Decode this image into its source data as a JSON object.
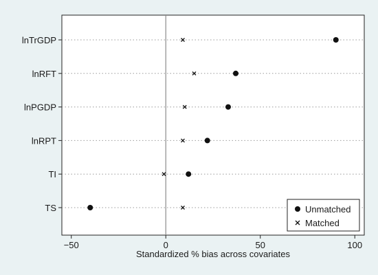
{
  "chart_data": {
    "type": "scatter",
    "title": "",
    "xlabel": "Standardized % bias across covariates",
    "ylabel": "",
    "xlim": [
      -55,
      105
    ],
    "xticks": [
      -50,
      0,
      50,
      100
    ],
    "categories": [
      "lnTrGDP",
      "lnRFT",
      "lnPGDP",
      "lnRPT",
      "TI",
      "TS"
    ],
    "series": [
      {
        "name": "Unmatched",
        "marker": "filled-circle",
        "values": [
          90,
          37,
          33,
          22,
          12,
          -40
        ]
      },
      {
        "name": "Matched",
        "marker": "x",
        "values": [
          9,
          15,
          10,
          9,
          -1,
          9
        ]
      }
    ],
    "reference_line_x": 0,
    "grid": "horizontal dotted",
    "legend_position": "bottom-right",
    "colors": {
      "background": "#eaf2f3",
      "plot_area": "#ffffff",
      "marker": "#111111"
    }
  }
}
